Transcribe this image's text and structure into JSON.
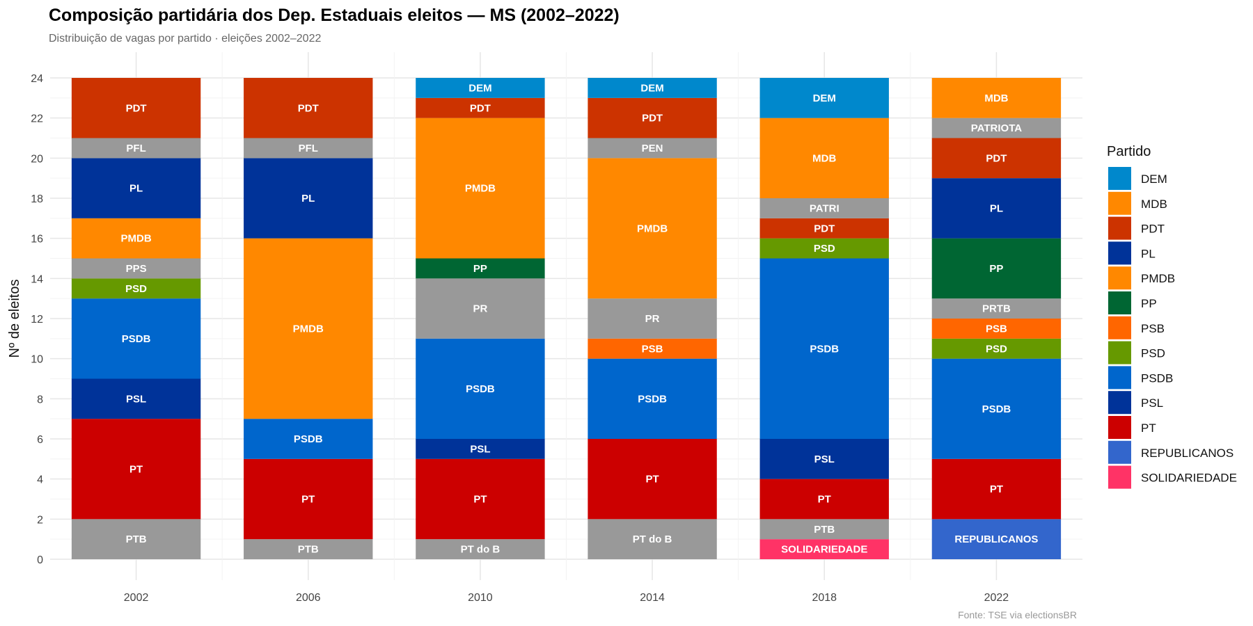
{
  "chart_data": {
    "type": "bar",
    "stacked": true,
    "title": "Composição partidária dos Dep. Estaduais eleitos — MS (2002–2022)",
    "subtitle": "Distribuição de vagas por partido · eleições 2002–2022",
    "xlabel": "",
    "ylabel": "Nº de eleitos",
    "caption": "Fonte: TSE via electionsBR",
    "ylim": [
      0,
      24
    ],
    "yticks": [
      0,
      2,
      4,
      6,
      8,
      10,
      12,
      14,
      16,
      18,
      20,
      22,
      24
    ],
    "grid": true,
    "legend": {
      "title": "Partido",
      "placement": "right",
      "entries": [
        "DEM",
        "MDB",
        "PDT",
        "PL",
        "PMDB",
        "PP",
        "PSB",
        "PSD",
        "PSDB",
        "PSL",
        "PT",
        "REPUBLICANOS",
        "SOLIDARIEDADE"
      ]
    },
    "colors": {
      "DEM": "#0088CC",
      "MDB": "#FF8800",
      "PDT": "#CC3300",
      "PL": "#003399",
      "PMDB": "#FF8800",
      "PP": "#006633",
      "PSB": "#FF6600",
      "PSD": "#669900",
      "PSDB": "#0066CC",
      "PSL": "#003399",
      "PT": "#CC0000",
      "REPUBLICANOS": "#3366CC",
      "SOLIDARIEDADE": "#FF3366",
      "other": "#999999"
    },
    "categories": [
      "2002",
      "2006",
      "2010",
      "2014",
      "2018",
      "2022"
    ],
    "stacks": [
      [
        [
          "PTB",
          2
        ],
        [
          "PT",
          5
        ],
        [
          "PSL",
          2
        ],
        [
          "PSDB",
          4
        ],
        [
          "PSD",
          1
        ],
        [
          "PPS",
          1
        ],
        [
          "PMDB",
          2
        ],
        [
          "PL",
          3
        ],
        [
          "PFL",
          1
        ],
        [
          "PDT",
          3
        ]
      ],
      [
        [
          "PTB",
          1
        ],
        [
          "PT",
          4
        ],
        [
          "PSDB",
          2
        ],
        [
          "PMDB",
          9
        ],
        [
          "PL",
          4
        ],
        [
          "PFL",
          1
        ],
        [
          "PDT",
          3
        ]
      ],
      [
        [
          "PT do B",
          1
        ],
        [
          "PT",
          4
        ],
        [
          "PSL",
          1
        ],
        [
          "PSDB",
          5
        ],
        [
          "PR",
          3
        ],
        [
          "PP",
          1
        ],
        [
          "PMDB",
          7
        ],
        [
          "PDT",
          1
        ],
        [
          "DEM",
          1
        ]
      ],
      [
        [
          "PT do B",
          2
        ],
        [
          "PT",
          4
        ],
        [
          "PSDB",
          4
        ],
        [
          "PSB",
          1
        ],
        [
          "PR",
          2
        ],
        [
          "PMDB",
          7
        ],
        [
          "PEN",
          1
        ],
        [
          "PDT",
          2
        ],
        [
          "DEM",
          1
        ]
      ],
      [
        [
          "SOLIDARIEDADE",
          1
        ],
        [
          "PTB",
          1
        ],
        [
          "PT",
          2
        ],
        [
          "PSL",
          2
        ],
        [
          "PSDB",
          9
        ],
        [
          "PSD",
          1
        ],
        [
          "PDT",
          1
        ],
        [
          "PATRI",
          1
        ],
        [
          "MDB",
          4
        ],
        [
          "DEM",
          2
        ]
      ],
      [
        [
          "REPUBLICANOS",
          2
        ],
        [
          "PT",
          3
        ],
        [
          "PSDB",
          5
        ],
        [
          "PSD",
          1
        ],
        [
          "PSB",
          1
        ],
        [
          "PRTB",
          1
        ],
        [
          "PP",
          3
        ],
        [
          "PL",
          3
        ],
        [
          "PDT",
          2
        ],
        [
          "PATRIOTA",
          1
        ],
        [
          "MDB",
          2
        ]
      ]
    ]
  }
}
